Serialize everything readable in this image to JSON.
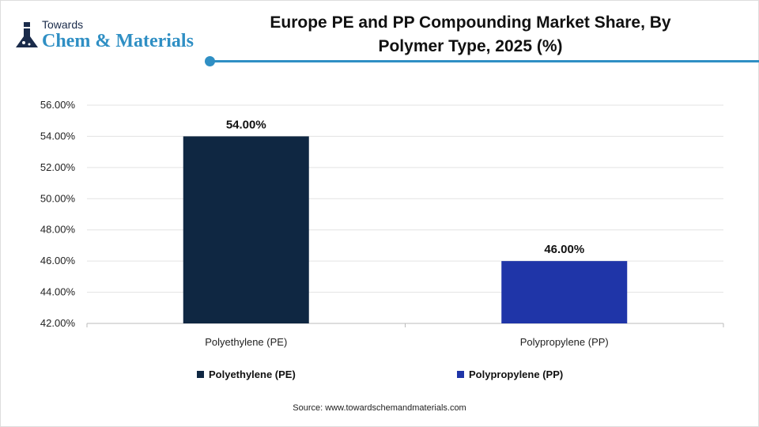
{
  "logo": {
    "line1": "Towards",
    "line2": "Chem & Materials"
  },
  "chart_data": {
    "type": "bar",
    "title": "Europe PE and PP Compounding Market Share, By Polymer Type, 2025 (%)",
    "title_lines": [
      "Europe PE and PP Compounding Market Share, By",
      "Polymer Type, 2025 (%)"
    ],
    "categories": [
      "Polyethylene (PE)",
      "Polypropylene (PP)"
    ],
    "values": [
      54.0,
      46.0
    ],
    "data_labels": [
      "54.00%",
      "46.00%"
    ],
    "colors": [
      "#0f2742",
      "#1f35a8"
    ],
    "ylim": [
      42,
      56
    ],
    "yticks": [
      "42.00%",
      "44.00%",
      "46.00%",
      "48.00%",
      "50.00%",
      "52.00%",
      "54.00%",
      "56.00%"
    ],
    "grid": true,
    "legend": [
      "Polyethylene (PE)",
      "Polypropylene (PP)"
    ],
    "legend_position": "bottom"
  },
  "source": "Source: www.towardschemandmaterials.com"
}
